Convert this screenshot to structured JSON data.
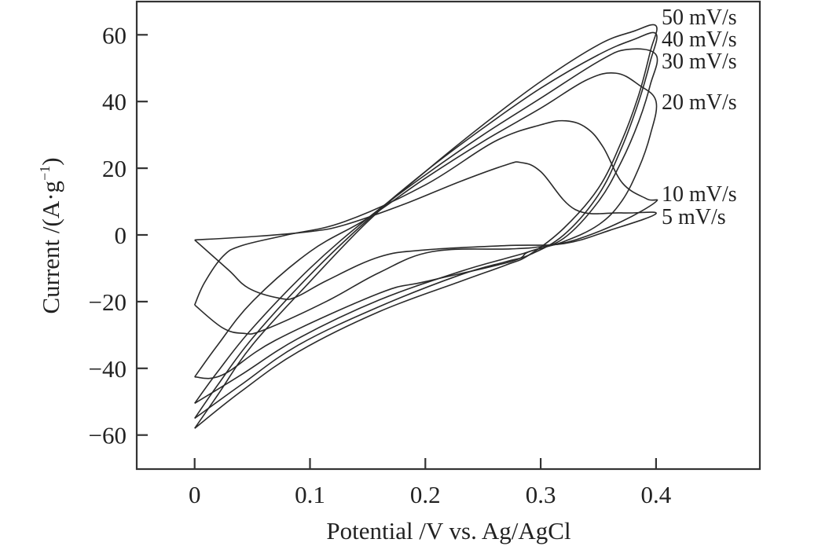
{
  "chart_data": {
    "type": "line",
    "title": "",
    "xlabel": "Potential /V vs. Ag/AgCl",
    "ylabel": "Current /(A·g⁻¹)",
    "ylabel_main": "Current /(A·g",
    "ylabel_sup": "−1",
    "ylabel_end": ")",
    "xlim": [
      -0.05,
      0.49
    ],
    "ylim": [
      -70,
      70
    ],
    "grid": false,
    "legend": "inline-right",
    "x_ticks": [
      0,
      0.1,
      0.2,
      0.3,
      0.4
    ],
    "x_tick_labels": [
      "0",
      "0.1",
      "0.2",
      "0.3",
      "0.4"
    ],
    "y_ticks": [
      60,
      40,
      20,
      0,
      -20,
      -40,
      -60
    ],
    "y_tick_labels": [
      "60",
      "40",
      "20",
      "0",
      "−20",
      "−40",
      "−60"
    ],
    "series": [
      {
        "name": "50 mV/s",
        "x": [
          0,
          0.02,
          0.05,
          0.1,
          0.15,
          0.2,
          0.25,
          0.3,
          0.35,
          0.38,
          0.4,
          0.395,
          0.385,
          0.37,
          0.35,
          0.32,
          0.29,
          0.27,
          0.23,
          0.16,
          0.09,
          0.04,
          0
        ],
        "y": [
          -58,
          -48,
          -33,
          -14,
          4,
          19,
          33,
          46,
          57,
          61,
          62.7,
          55,
          42,
          28,
          14,
          2,
          -6,
          -9,
          -14,
          -23,
          -35,
          -47,
          -58
        ]
      },
      {
        "name": "40 mV/s",
        "x": [
          0,
          0.02,
          0.05,
          0.1,
          0.15,
          0.2,
          0.25,
          0.3,
          0.35,
          0.38,
          0.4,
          0.395,
          0.385,
          0.37,
          0.35,
          0.32,
          0.29,
          0.27,
          0.23,
          0.16,
          0.09,
          0.04,
          0
        ],
        "y": [
          -55,
          -45,
          -31,
          -12,
          4.5,
          19,
          32,
          44,
          54,
          58.5,
          60.3,
          52,
          40,
          26,
          12,
          0,
          -6,
          -8,
          -12,
          -21.5,
          -33,
          -45,
          -55
        ]
      },
      {
        "name": "30 mV/s",
        "x": [
          0,
          0.02,
          0.05,
          0.1,
          0.15,
          0.2,
          0.25,
          0.3,
          0.35,
          0.375,
          0.4,
          0.395,
          0.385,
          0.37,
          0.35,
          0.32,
          0.29,
          0.27,
          0.23,
          0.16,
          0.09,
          0.04,
          0
        ],
        "y": [
          -50.5,
          -41,
          -28,
          -10,
          5,
          18,
          30,
          41,
          52,
          55.6,
          54,
          45,
          34,
          22,
          10,
          -1,
          -5,
          -7,
          -11,
          -19.5,
          -31,
          -42,
          -50.5
        ]
      },
      {
        "name": "20 mV/s",
        "x": [
          0,
          0.02,
          0.05,
          0.1,
          0.15,
          0.2,
          0.25,
          0.3,
          0.34,
          0.365,
          0.385,
          0.4,
          0.395,
          0.385,
          0.37,
          0.35,
          0.32,
          0.29,
          0.274,
          0.2,
          0.16,
          0.07,
          0.024,
          0
        ],
        "y": [
          -42.6,
          -33,
          -20,
          -5,
          5,
          17,
          28,
          38,
          46.5,
          48.5,
          45,
          40,
          30,
          20,
          10,
          3,
          -2,
          -5,
          -8,
          -14,
          -17.5,
          -31.6,
          -42,
          -42.6
        ]
      },
      {
        "name": "10 mV/s",
        "x": [
          0,
          0.0084,
          0.024,
          0.04,
          0.08,
          0.13,
          0.2,
          0.26,
          0.3,
          0.322,
          0.34,
          0.354,
          0.371,
          0.392,
          0.4,
          0.37,
          0.33,
          0.3,
          0.274,
          0.206,
          0.16,
          0.115,
          0.06,
          0.042,
          0.024,
          0
        ],
        "y": [
          -21,
          -14.4,
          -6.6,
          -3.3,
          0,
          4,
          15,
          28,
          33,
          34.2,
          32,
          26.4,
          15.5,
          10.8,
          10,
          4,
          -1.5,
          -3.5,
          -4.2,
          -5,
          -11.3,
          -19.8,
          -28.5,
          -29.5,
          -27.8,
          -21
        ]
      },
      {
        "name": "5 mV/s",
        "x": [
          0,
          0.05,
          0.1,
          0.13,
          0.18,
          0.23,
          0.27,
          0.283,
          0.3,
          0.33,
          0.37,
          0.4,
          0.36,
          0.32,
          0.27,
          0.2,
          0.16,
          0.115,
          0.088,
          0.074,
          0.047,
          0.029,
          0
        ],
        "y": [
          -1.5,
          -0.5,
          1,
          3,
          9,
          16,
          21,
          21.7,
          19,
          7.6,
          6.6,
          6.4,
          1.4,
          -2.6,
          -3.2,
          -4.5,
          -6.6,
          -13.6,
          -18.6,
          -19,
          -16,
          -10.4,
          -1.5
        ]
      }
    ]
  }
}
